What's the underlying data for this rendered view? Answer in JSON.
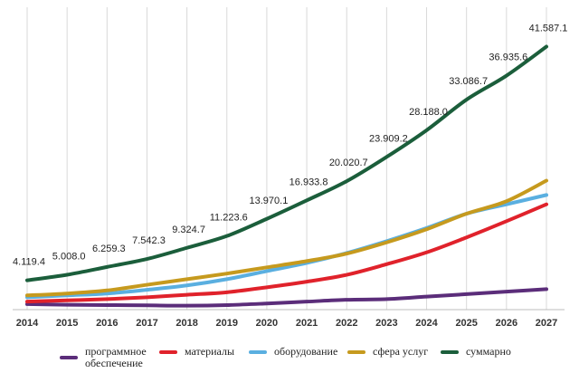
{
  "chart_data": {
    "type": "line",
    "x": [
      "2014",
      "2015",
      "2016",
      "2017",
      "2018",
      "2019",
      "2020",
      "2021",
      "2022",
      "2023",
      "2024",
      "2025",
      "2026",
      "2027"
    ],
    "ylim": [
      0,
      45000
    ],
    "grid": "vertical",
    "legend_position": "bottom",
    "series": [
      {
        "name": "программное обеспечение",
        "color": "#5b2d7a",
        "values": [
          300,
          200,
          150,
          100,
          50,
          150,
          400,
          700,
          1000,
          1100,
          1500,
          1900,
          2300,
          2700
        ]
      },
      {
        "name": "материалы",
        "color": "#e0222b",
        "values": [
          700,
          900,
          1100,
          1400,
          1800,
          2200,
          3000,
          3900,
          5000,
          6700,
          8600,
          11000,
          13600,
          16300
        ]
      },
      {
        "name": "оборудование",
        "color": "#5aafe0",
        "values": [
          1400,
          1700,
          2000,
          2600,
          3300,
          4300,
          5600,
          6900,
          8500,
          10400,
          12500,
          14800,
          16300,
          17800
        ]
      },
      {
        "name": "сфера услуг",
        "color": "#c69a1e",
        "values": [
          1700,
          2000,
          2500,
          3400,
          4300,
          5200,
          6200,
          7200,
          8400,
          10200,
          12300,
          14800,
          16800,
          20100
        ]
      },
      {
        "name": "суммарно",
        "color": "#1b5e3b",
        "values": [
          4119.4,
          5008.0,
          6259.3,
          7542.3,
          9324.7,
          11223.6,
          13970.1,
          16933.8,
          20020.7,
          23909.2,
          28188.0,
          33086.7,
          36935.6,
          41587.1
        ]
      }
    ],
    "data_labels": [
      "4.119.4",
      "5.008.0",
      "6.259.3",
      "7.542.3",
      "9.324.7",
      "11.223.6",
      "13.970.1",
      "16.933.8",
      "20.020.7",
      "23.909.2",
      "28.188.0",
      "33.086.7",
      "36.935.6",
      "41.587.1"
    ]
  },
  "legend": {
    "items": [
      {
        "label": "программное обеспечение",
        "color": "#5b2d7a"
      },
      {
        "label": "материалы",
        "color": "#e0222b"
      },
      {
        "label": "оборудование",
        "color": "#5aafe0"
      },
      {
        "label": "сфера услуг",
        "color": "#c69a1e"
      },
      {
        "label": "суммарно",
        "color": "#1b5e3b"
      }
    ]
  }
}
